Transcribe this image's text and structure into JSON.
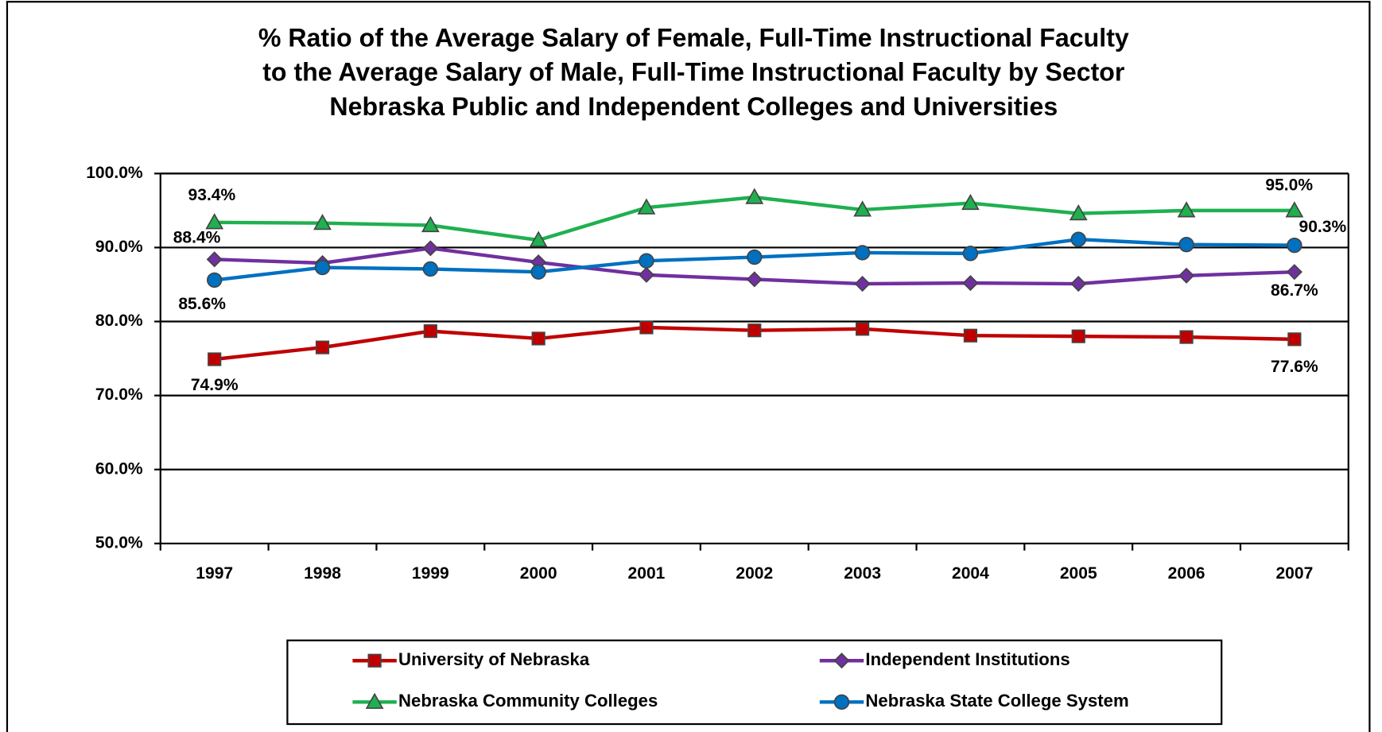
{
  "chart_data": {
    "type": "line",
    "title": [
      "% Ratio of the Average Salary of Female, Full-Time Instructional Faculty",
      "to the Average Salary of Male, Full-Time Instructional Faculty by Sector",
      "Nebraska Public and Independent Colleges and Universities"
    ],
    "categories": [
      "1997",
      "1998",
      "1999",
      "2000",
      "2001",
      "2002",
      "2003",
      "2004",
      "2005",
      "2006",
      "2007"
    ],
    "ylim": [
      50,
      100
    ],
    "yticks": [
      {
        "value": 50,
        "label": "50.0%"
      },
      {
        "value": 60,
        "label": "60.0%"
      },
      {
        "value": 70,
        "label": "70.0%"
      },
      {
        "value": 80,
        "label": "80.0%"
      },
      {
        "value": 90,
        "label": "90.0%"
      },
      {
        "value": 100,
        "label": "100.0%"
      }
    ],
    "grid": true,
    "legend": "bottom",
    "series": [
      {
        "name": "University of Nebraska",
        "color": "#c00000",
        "marker": "square",
        "values": [
          74.9,
          76.5,
          78.7,
          77.7,
          79.2,
          78.8,
          79.0,
          78.1,
          78.0,
          77.9,
          77.6
        ],
        "value_labels": [
          "74.9%",
          null,
          null,
          null,
          null,
          null,
          null,
          null,
          null,
          null,
          "77.6%"
        ]
      },
      {
        "name": "Independent Institutions",
        "color": "#7030a0",
        "marker": "diamond",
        "values": [
          88.4,
          87.9,
          89.9,
          88.0,
          86.3,
          85.7,
          85.1,
          85.2,
          85.1,
          86.2,
          86.7
        ],
        "value_labels": [
          "88.4%",
          null,
          null,
          null,
          null,
          null,
          null,
          null,
          null,
          null,
          "86.7%"
        ]
      },
      {
        "name": "Nebraska Community Colleges",
        "color": "#1fb050",
        "marker": "triangle",
        "values": [
          93.4,
          93.3,
          93.0,
          91.0,
          95.4,
          96.8,
          95.1,
          96.0,
          94.6,
          95.0,
          95.0
        ],
        "value_labels": [
          "93.4%",
          null,
          null,
          null,
          null,
          null,
          null,
          null,
          null,
          null,
          "95.0%"
        ]
      },
      {
        "name": "Nebraska State College System",
        "color": "#0070c0",
        "marker": "circle",
        "values": [
          85.6,
          87.3,
          87.1,
          86.7,
          88.2,
          88.7,
          89.3,
          89.2,
          91.1,
          90.4,
          90.3
        ],
        "value_labels": [
          "85.6%",
          null,
          null,
          null,
          null,
          null,
          null,
          null,
          null,
          null,
          "90.3%"
        ]
      }
    ]
  }
}
